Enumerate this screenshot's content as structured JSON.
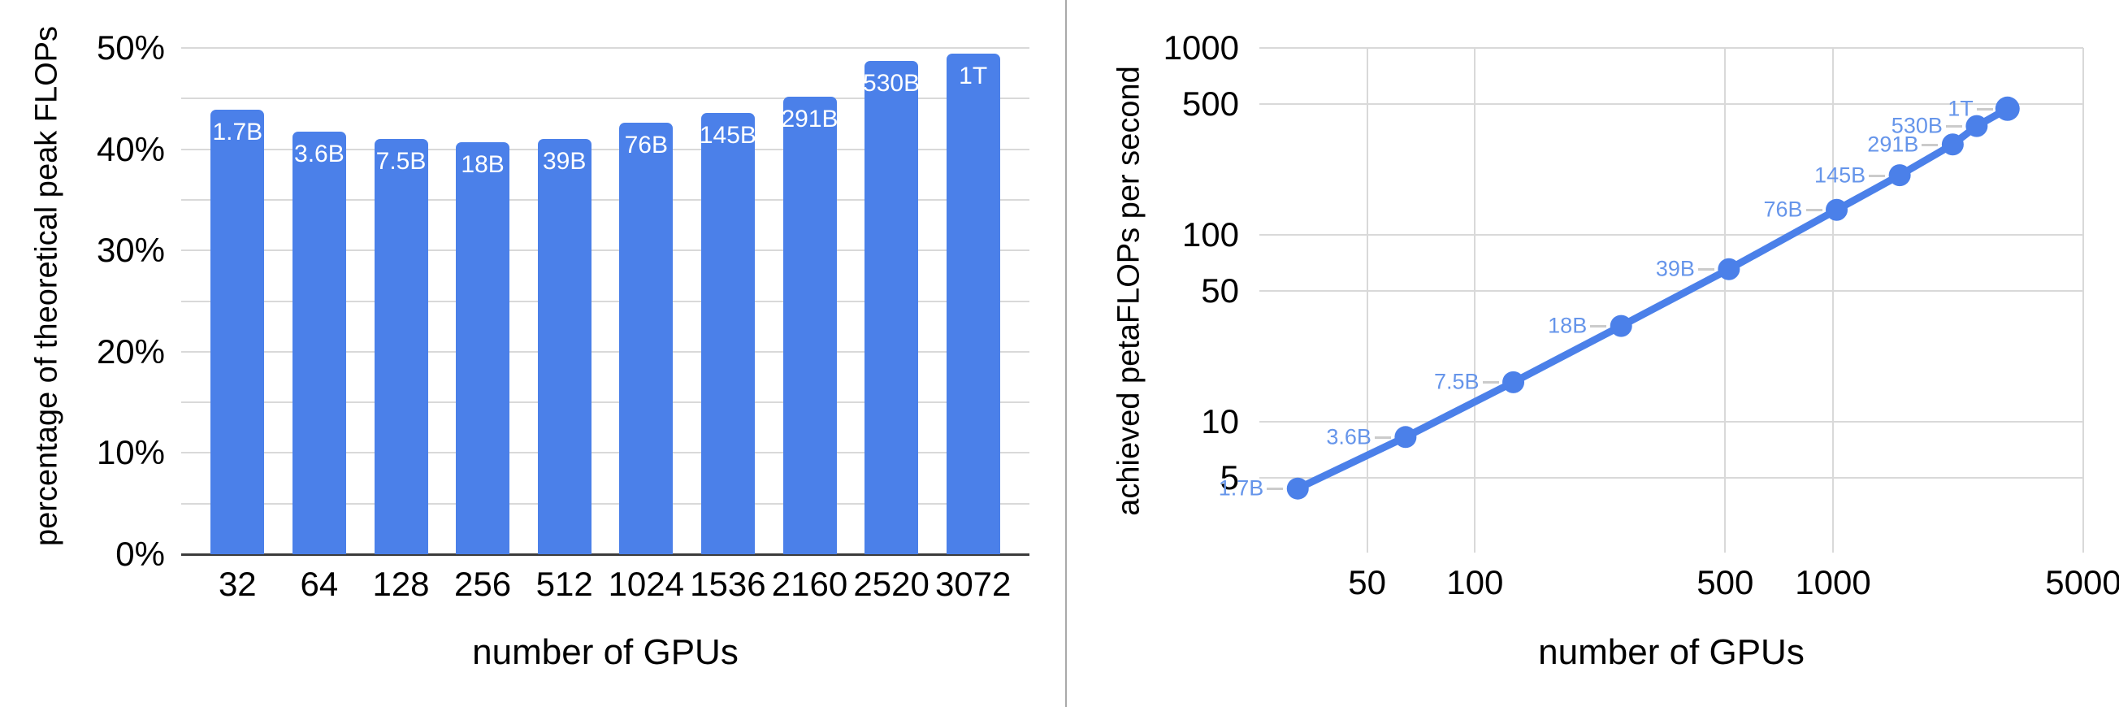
{
  "figure": {
    "panel_count": 2,
    "background": "#ffffff"
  },
  "chart_data": [
    {
      "type": "bar",
      "title": "",
      "xlabel": "number of GPUs",
      "ylabel": "percentage of theoretical peak FLOPs",
      "categories": [
        "32",
        "64",
        "128",
        "256",
        "512",
        "1024",
        "1536",
        "2160",
        "2520",
        "3072"
      ],
      "values": [
        43.9,
        41.7,
        41.0,
        40.7,
        41.0,
        42.6,
        43.6,
        45.2,
        48.7,
        49.4
      ],
      "bar_labels": [
        "1.7B",
        "3.6B",
        "7.5B",
        "18B",
        "39B",
        "76B",
        "145B",
        "291B",
        "530B",
        "1T"
      ],
      "ylim": [
        0,
        50
      ],
      "grid": true,
      "legend": "none",
      "y_ticks": [
        {
          "value": 0,
          "label": "0%"
        },
        {
          "value": 5
        },
        {
          "value": 10,
          "label": "10%"
        },
        {
          "value": 15
        },
        {
          "value": 20,
          "label": "20%"
        },
        {
          "value": 25
        },
        {
          "value": 30,
          "label": "30%"
        },
        {
          "value": 35
        },
        {
          "value": 40,
          "label": "40%"
        },
        {
          "value": 45
        },
        {
          "value": 50,
          "label": "50%"
        }
      ]
    },
    {
      "type": "line",
      "title": "",
      "xlabel": "number of GPUs",
      "ylabel": "achieved petaFLOPs per second",
      "x_scale": "log",
      "y_scale": "log",
      "xlim": [
        25,
        5000
      ],
      "ylim": [
        2,
        1000
      ],
      "grid": true,
      "legend": "none",
      "x": [
        32,
        64,
        128,
        256,
        512,
        1024,
        1536,
        2160,
        2520,
        3072
      ],
      "y": [
        4.4,
        8.3,
        16.3,
        32.6,
        65.6,
        136.2,
        208.6,
        304.7,
        382.2,
        473.0
      ],
      "point_labels": [
        "1.7B",
        "3.6B",
        "7.5B",
        "18B",
        "39B",
        "76B",
        "145B",
        "291B",
        "530B",
        "1T"
      ],
      "x_ticks": [
        {
          "value": 50,
          "label": "50"
        },
        {
          "value": 100,
          "label": "100"
        },
        {
          "value": 500,
          "label": "500"
        },
        {
          "value": 1000,
          "label": "1000"
        },
        {
          "value": 5000,
          "label": "5000"
        }
      ],
      "y_ticks": [
        {
          "value": 5,
          "label": "5"
        },
        {
          "value": 10,
          "label": "10"
        },
        {
          "value": 50,
          "label": "50"
        },
        {
          "value": 100,
          "label": "100"
        },
        {
          "value": 500,
          "label": "500"
        },
        {
          "value": 1000,
          "label": "1000"
        }
      ]
    }
  ],
  "colors": {
    "series_blue": "#4b80e9",
    "point_label_blue": "#6695ea",
    "bar_value_label": "#ffffff",
    "gridline": "#d9d9d9",
    "zero_axis": "#3b3b3b",
    "text": "#000000",
    "leader_line": "#cbcbcb",
    "panel_divider": "#a9a9a9",
    "background": "#ffffff"
  }
}
